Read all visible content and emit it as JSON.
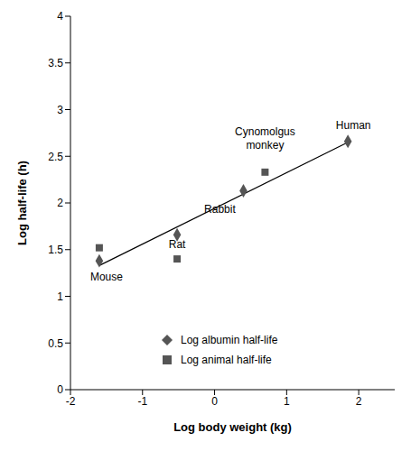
{
  "chart_data": {
    "type": "scatter",
    "x_label": "Log body weight (kg)",
    "y_label": "Log half-life (h)",
    "xlim": [
      -2,
      2.5
    ],
    "xticks": [
      -2,
      -1,
      0,
      1,
      2
    ],
    "ylim": [
      0,
      4
    ],
    "yticks": [
      0,
      0.5,
      1,
      1.5,
      2,
      2.5,
      3,
      3.5,
      4
    ],
    "grid": false,
    "legend": "bottom",
    "series": [
      {
        "name": "Log albumin half-life",
        "color": "#555555",
        "marker": "diamond",
        "x": [
          -1.6,
          -0.52,
          0.4,
          1.85
        ],
        "values": [
          1.38,
          1.66,
          2.13,
          2.66
        ]
      },
      {
        "name": "Log animal half-life",
        "color": "#555555",
        "marker": "square",
        "x": [
          -1.6,
          -0.52,
          0.7
        ],
        "values": [
          1.52,
          1.4,
          2.33
        ]
      }
    ],
    "trend_line": {
      "x": [
        -1.6,
        1.85
      ],
      "values": [
        1.33,
        2.65
      ],
      "color": "#000000"
    },
    "annotations": [
      {
        "text": "Mouse",
        "x": -1.6,
        "y": 1.38
      },
      {
        "text": "Rat",
        "x": -0.52,
        "y": 1.66
      },
      {
        "text": "Rabbit",
        "x": 0.4,
        "y": 2.13
      },
      {
        "text": "Cynomolgus monkey",
        "x": 0.7,
        "y": 2.33
      },
      {
        "text": "Human",
        "x": 1.85,
        "y": 2.66
      }
    ]
  }
}
